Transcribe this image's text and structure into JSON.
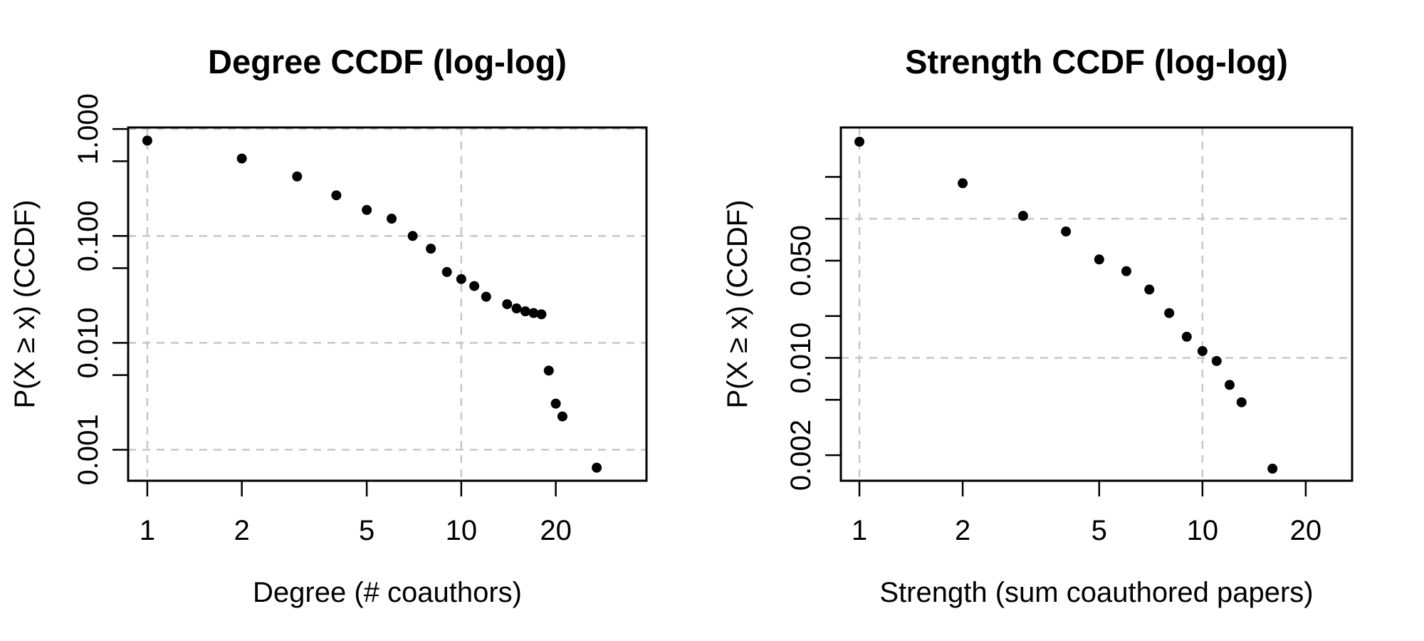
{
  "figure": {
    "background": "#ffffff",
    "text_color": "#000000",
    "grid_color": "#c7c7c7",
    "point_color": "#000000",
    "frame_color": "#000000"
  },
  "chart_data": [
    {
      "type": "scatter",
      "title": "Degree CCDF (log-log)",
      "xlabel": "Degree (# coauthors)",
      "ylabel": "P(X ≥ x)  (CCDF)",
      "xscale": "log",
      "yscale": "log",
      "xlim": [
        0.869,
        38.9
      ],
      "ylim": [
        0.000513,
        1.034
      ],
      "grid": true,
      "grid_x_values": [
        1,
        10
      ],
      "grid_y_values": [
        1,
        0.1,
        0.01,
        0.001
      ],
      "xticks": [
        {
          "v": 1,
          "label": "1"
        },
        {
          "v": 2,
          "label": "2"
        },
        {
          "v": 5,
          "label": "5"
        },
        {
          "v": 10,
          "label": "10"
        },
        {
          "v": 20,
          "label": "20"
        }
      ],
      "yticks": [
        {
          "v": 1,
          "label": "1.000"
        },
        {
          "v": 0.1,
          "label": "0.100"
        },
        {
          "v": 0.01,
          "label": "0.010"
        },
        {
          "v": 0.001,
          "label": "0.001"
        }
      ],
      "yticks_minor": [
        0.5,
        0.05,
        0.005
      ],
      "points": [
        [
          1,
          0.78
        ],
        [
          2,
          0.53
        ],
        [
          3,
          0.36
        ],
        [
          4,
          0.24
        ],
        [
          5,
          0.175
        ],
        [
          6,
          0.145
        ],
        [
          7,
          0.1
        ],
        [
          8,
          0.076
        ],
        [
          9,
          0.046
        ],
        [
          10,
          0.0395
        ],
        [
          11,
          0.034
        ],
        [
          12,
          0.027
        ],
        [
          14,
          0.023
        ],
        [
          15,
          0.021
        ],
        [
          16,
          0.0197
        ],
        [
          17,
          0.019
        ],
        [
          18,
          0.0185
        ],
        [
          19,
          0.0055
        ],
        [
          20,
          0.0027
        ],
        [
          21,
          0.00205
        ],
        [
          27,
          0.00068
        ]
      ]
    },
    {
      "type": "scatter",
      "title": "Strength CCDF (log-log)",
      "xlabel": "Strength (sum coauthored papers)",
      "ylabel": "P(X ≥ x)  (CCDF)",
      "xscale": "log",
      "yscale": "log",
      "xlim": [
        0.883,
        27.3
      ],
      "ylim": [
        0.00131,
        0.453
      ],
      "grid": true,
      "grid_x_values": [
        1,
        10
      ],
      "grid_y_values": [
        0.1,
        0.01
      ],
      "xticks": [
        {
          "v": 1,
          "label": "1"
        },
        {
          "v": 2,
          "label": "2"
        },
        {
          "v": 5,
          "label": "5"
        },
        {
          "v": 10,
          "label": "10"
        },
        {
          "v": 20,
          "label": "20"
        }
      ],
      "yticks": [
        {
          "v": 0.05,
          "label": "0.050"
        },
        {
          "v": 0.01,
          "label": "0.010"
        },
        {
          "v": 0.002,
          "label": "0.002"
        }
      ],
      "yticks_minor": [
        0.2,
        0.1,
        0.02,
        0.005
      ],
      "points": [
        [
          1,
          0.358
        ],
        [
          2,
          0.18
        ],
        [
          3,
          0.105
        ],
        [
          4,
          0.081
        ],
        [
          5,
          0.051
        ],
        [
          6,
          0.042
        ],
        [
          7,
          0.031
        ],
        [
          8,
          0.021
        ],
        [
          9,
          0.0142
        ],
        [
          10,
          0.0112
        ],
        [
          11,
          0.0095
        ],
        [
          12,
          0.0064
        ],
        [
          13,
          0.0048
        ],
        [
          16,
          0.0016
        ]
      ]
    }
  ]
}
